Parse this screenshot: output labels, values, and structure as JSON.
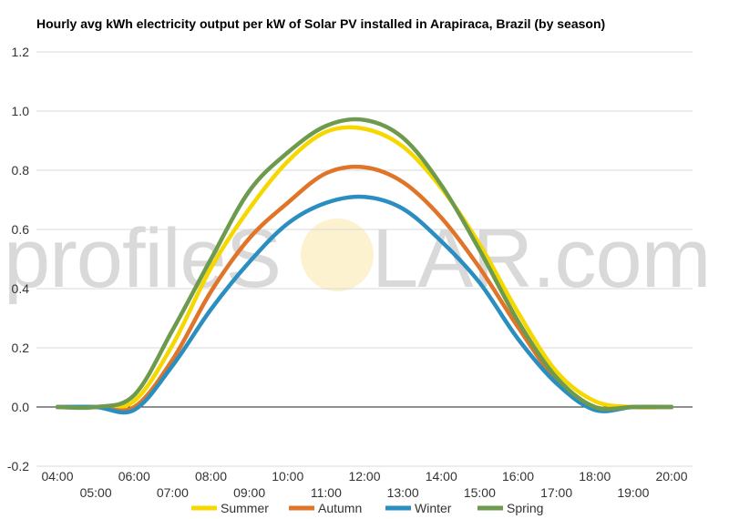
{
  "watermark": {
    "text_before": "profileS",
    "text_after": "LAR.com"
  },
  "chart_data": {
    "type": "line",
    "title": "Hourly avg kWh electricity output per kW of Solar PV installed in Arapiraca, Brazil (by season)",
    "xlabel": "",
    "ylabel": "",
    "ylim": [
      -0.2,
      1.2
    ],
    "y_ticks": [
      -0.2,
      0.0,
      0.2,
      0.4,
      0.6,
      0.8,
      1.0,
      1.2
    ],
    "y_tick_labels": [
      "-0.2",
      "0.0",
      "0.2",
      "0.4",
      "0.6",
      "0.8",
      "1.0",
      "1.2"
    ],
    "x": [
      "04:00",
      "05:00",
      "06:00",
      "07:00",
      "08:00",
      "09:00",
      "10:00",
      "11:00",
      "12:00",
      "13:00",
      "14:00",
      "15:00",
      "16:00",
      "17:00",
      "18:00",
      "19:00",
      "20:00"
    ],
    "x_ticks_upper": [
      "04:00",
      "06:00",
      "08:00",
      "10:00",
      "12:00",
      "14:00",
      "16:00",
      "18:00",
      "20:00"
    ],
    "x_ticks_lower": [
      "05:00",
      "07:00",
      "09:00",
      "11:00",
      "13:00",
      "15:00",
      "17:00",
      "19:00"
    ],
    "grid": true,
    "legend_position": "bottom",
    "series": [
      {
        "name": "Summer",
        "color": "#f5d800",
        "values": [
          0.0,
          0.0,
          0.02,
          0.21,
          0.47,
          0.67,
          0.83,
          0.93,
          0.94,
          0.88,
          0.74,
          0.55,
          0.32,
          0.12,
          0.02,
          0.0,
          0.0
        ]
      },
      {
        "name": "Autumn",
        "color": "#e07428",
        "values": [
          0.0,
          0.0,
          0.0,
          0.16,
          0.39,
          0.57,
          0.69,
          0.79,
          0.81,
          0.76,
          0.64,
          0.47,
          0.27,
          0.09,
          0.0,
          0.0,
          0.0
        ]
      },
      {
        "name": "Winter",
        "color": "#2a8fc0",
        "values": [
          0.0,
          0.0,
          -0.01,
          0.14,
          0.33,
          0.49,
          0.62,
          0.69,
          0.71,
          0.67,
          0.56,
          0.42,
          0.23,
          0.08,
          -0.01,
          0.0,
          0.0
        ]
      },
      {
        "name": "Spring",
        "color": "#6e9a4e",
        "values": [
          0.0,
          0.0,
          0.04,
          0.26,
          0.5,
          0.73,
          0.86,
          0.95,
          0.97,
          0.91,
          0.75,
          0.53,
          0.29,
          0.1,
          0.0,
          0.0,
          0.0
        ]
      }
    ]
  }
}
